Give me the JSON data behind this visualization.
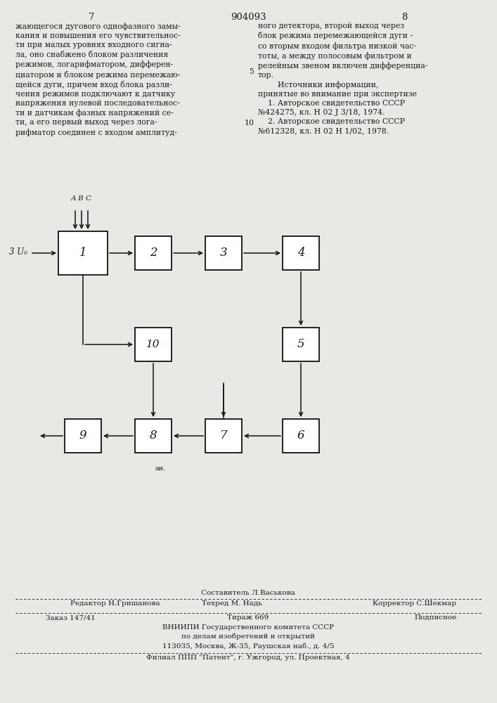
{
  "bg_color": "#e8e8e4",
  "text_color": "#1a1a1a",
  "page_num_left": "7",
  "page_num_center": "904093",
  "page_num_right": "8",
  "left_text": "жающегося дугового однофазного замы-\nкания и повышения его чувствительнос-\nти при малых уровнях входного сигна-\nла, оно снабжено блоком различения\nрежимов, логарифматором, дифферен-\nциатором и блоком режима перемежаю-\nщейся дуги, причем вход блока разли-\nчения режимов подключают к датчику\nнапряжения нулевой последовательнос-\nти и датчикам фазных напряжений се-\nти, а его первый выход через лога-\nрифматор соединен с входом амплитуд-",
  "right_text": "ного детектора, второй выход через\nблок режима перемежающейся дуги -\nсо вторым входом фильтра низкой час-\nтоты, а между полосовым фильтром и\nрелейным звеном включен дифференциа-\nтор.\n        Источники информации,\nпринятые во внимание при экспертизе\n    1. Авторское свидетельство СССР\n№424275, кл. Н 02 J 3/18, 1974.\n    2. Авторское свидетельство СССР\n№612328, кл. Н 02 Н 1/02, 1978.",
  "line5_label": "5",
  "line10_label": "10",
  "abc_label": "А В С",
  "input_label": "3 U₀",
  "ano_label": "ан.",
  "footer_composer_line": "Составитель Л.Васькова",
  "footer_editor": "Редактор Н.Гришанова",
  "footer_techred": "Техред М. Надь",
  "footer_corrector": "Корректор С.Шекмар",
  "footer_order": "Заказ 147/41",
  "footer_tirazh": "Тираж 669",
  "footer_podpisnoe": "Подписное",
  "footer_vniiipi": "ВНИИПИ Государственного комитета СССР",
  "footer_po_delam": "по делам изобретений и открытий",
  "footer_address": "113035, Москва, Ж-35, Раушская наб., д. 4/5",
  "footer_filial": "Филиал ППП \"Патент\", г. Ужгород, ул. Проектная, 4"
}
